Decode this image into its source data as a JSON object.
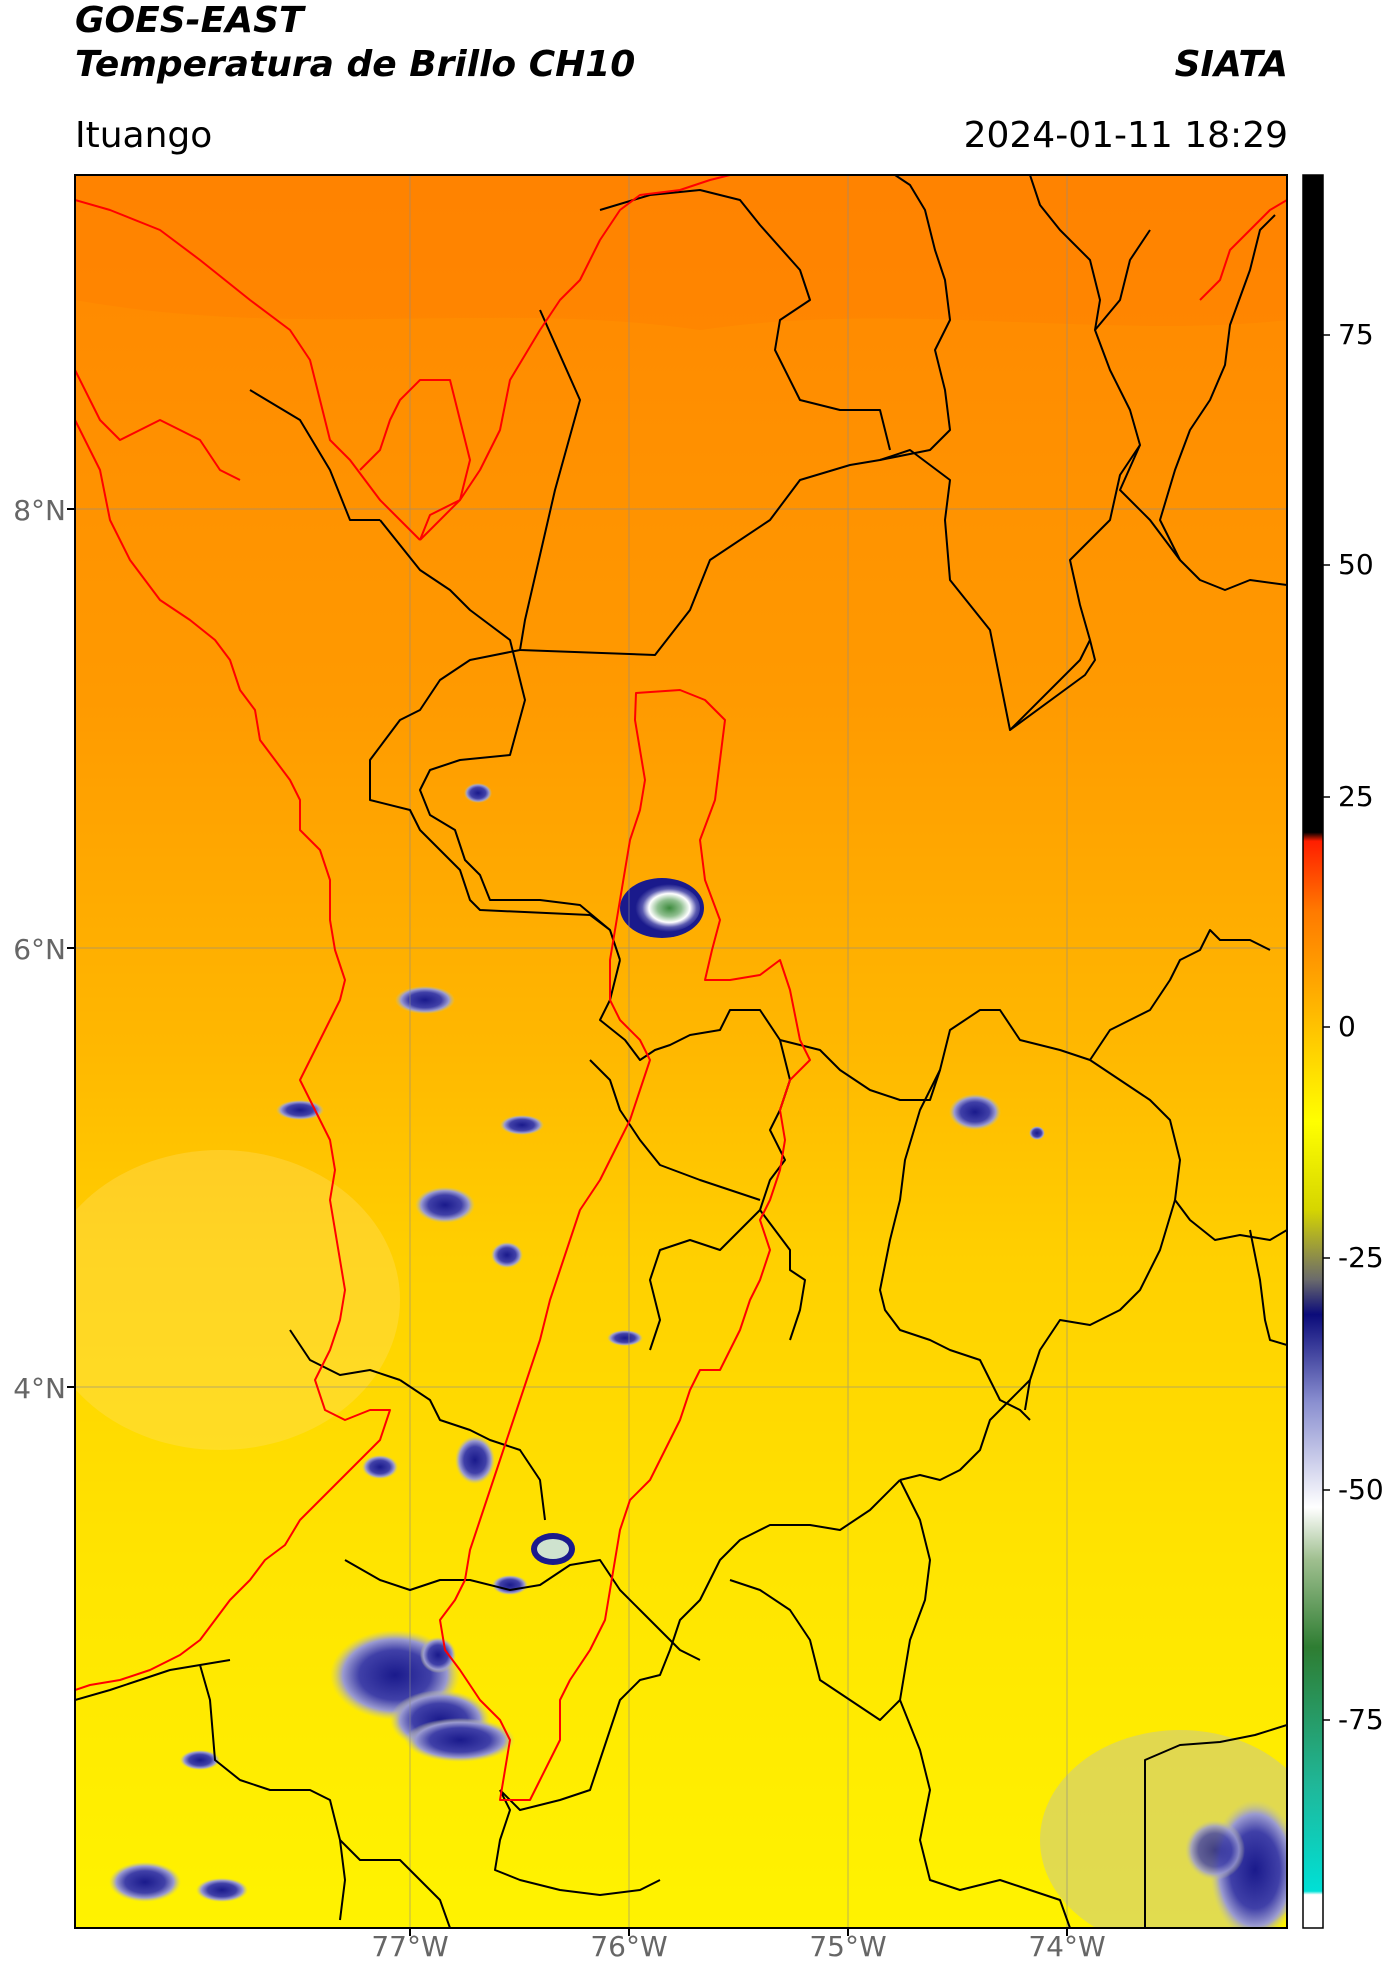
{
  "header": {
    "satellite": "GOES-EAST",
    "product": "Temperatura de Brillo CH10",
    "agency": "SIATA",
    "region": "Ituango",
    "datetime": "2024-01-11 18:29"
  },
  "map": {
    "latitude_labels": [
      "8°N",
      "6°N",
      "4°N"
    ],
    "longitude_labels": [
      "77°W",
      "76°W",
      "75°W",
      "74°W"
    ],
    "background_colors": {
      "north": "#ff8c00",
      "middle": "#ffb400",
      "south": "#ffe600"
    },
    "boundary_colors": {
      "departments": "#000000",
      "coast_and_basin": "#ff0000"
    }
  },
  "colorbar": {
    "tick_labels": [
      "75",
      "50",
      "25",
      "0",
      "-25",
      "-50",
      "-75"
    ],
    "range": [
      -95,
      92
    ],
    "colors": [
      "#ffffff",
      "#00e5dc",
      "#2e8b57",
      "#e8e8e8",
      "#1a1a8c",
      "#f5f000",
      "#ff8c00",
      "#ff0000",
      "#000000"
    ]
  }
}
